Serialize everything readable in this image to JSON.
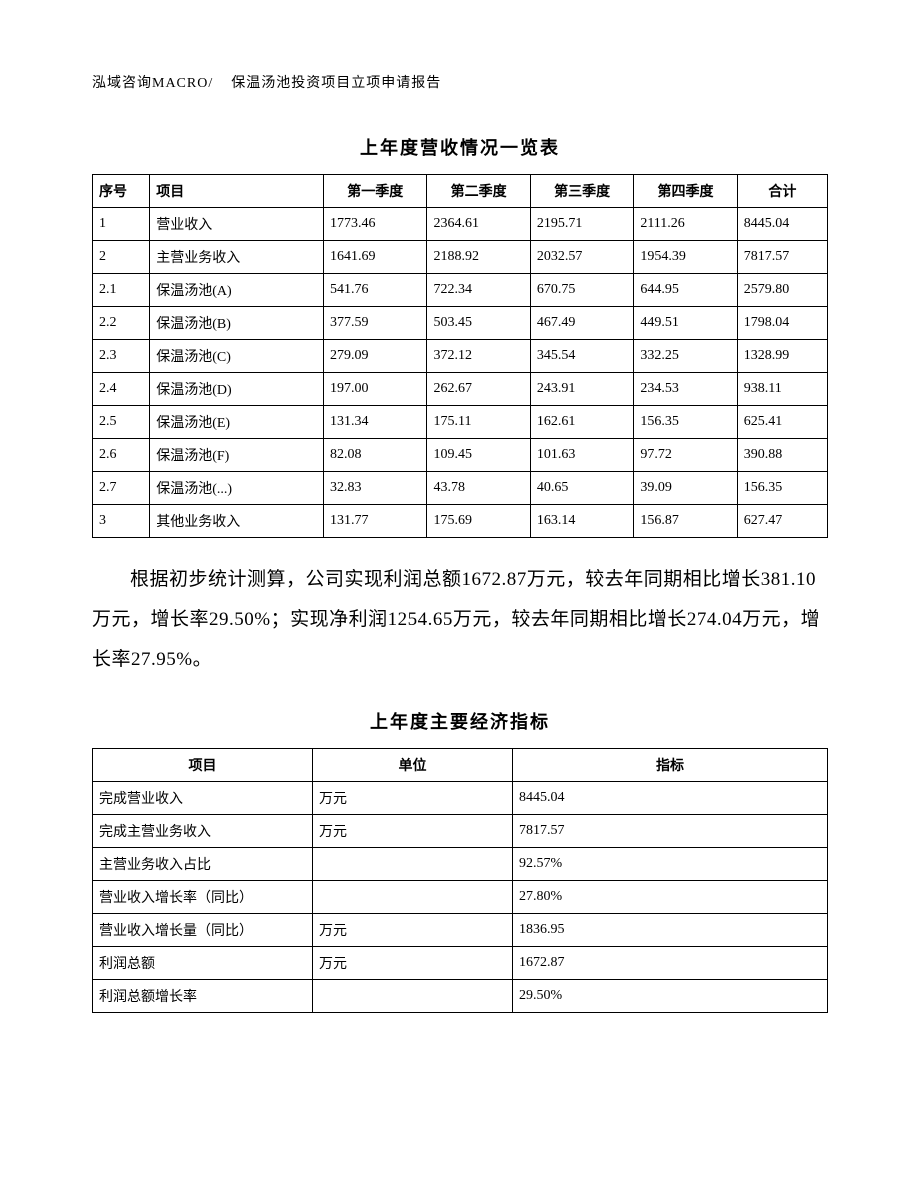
{
  "header": {
    "left": "泓域咨询MACRO/",
    "right": "保温汤池投资项目立项申请报告"
  },
  "table1": {
    "title": "上年度营收情况一览表",
    "columns": [
      "序号",
      "项目",
      "第一季度",
      "第二季度",
      "第三季度",
      "第四季度",
      "合计"
    ],
    "rows": [
      [
        "1",
        "营业收入",
        "1773.46",
        "2364.61",
        "2195.71",
        "2111.26",
        "8445.04"
      ],
      [
        "2",
        "主营业务收入",
        "1641.69",
        "2188.92",
        "2032.57",
        "1954.39",
        "7817.57"
      ],
      [
        "2.1",
        "保温汤池(A)",
        "541.76",
        "722.34",
        "670.75",
        "644.95",
        "2579.80"
      ],
      [
        "2.2",
        "保温汤池(B)",
        "377.59",
        "503.45",
        "467.49",
        "449.51",
        "1798.04"
      ],
      [
        "2.3",
        "保温汤池(C)",
        "279.09",
        "372.12",
        "345.54",
        "332.25",
        "1328.99"
      ],
      [
        "2.4",
        "保温汤池(D)",
        "197.00",
        "262.67",
        "243.91",
        "234.53",
        "938.11"
      ],
      [
        "2.5",
        "保温汤池(E)",
        "131.34",
        "175.11",
        "162.61",
        "156.35",
        "625.41"
      ],
      [
        "2.6",
        "保温汤池(F)",
        "82.08",
        "109.45",
        "101.63",
        "97.72",
        "390.88"
      ],
      [
        "2.7",
        "保温汤池(...)",
        "32.83",
        "43.78",
        "40.65",
        "39.09",
        "156.35"
      ],
      [
        "3",
        "其他业务收入",
        "131.77",
        "175.69",
        "163.14",
        "156.87",
        "627.47"
      ]
    ]
  },
  "paragraph": "根据初步统计测算，公司实现利润总额1672.87万元，较去年同期相比增长381.10万元，增长率29.50%；实现净利润1254.65万元，较去年同期相比增长274.04万元，增长率27.95%。",
  "table2": {
    "title": "上年度主要经济指标",
    "columns": [
      "项目",
      "单位",
      "指标"
    ],
    "rows": [
      [
        "完成营业收入",
        "万元",
        "8445.04"
      ],
      [
        "完成主营业务收入",
        "万元",
        "7817.57"
      ],
      [
        "主营业务收入占比",
        "",
        "92.57%"
      ],
      [
        "营业收入增长率（同比）",
        "",
        "27.80%"
      ],
      [
        "营业收入增长量（同比）",
        "万元",
        "1836.95"
      ],
      [
        "利润总额",
        "万元",
        "1672.87"
      ],
      [
        "利润总额增长率",
        "",
        "29.50%"
      ]
    ]
  },
  "style": {
    "text_color": "#000000",
    "bg_color": "#ffffff",
    "border_color": "#000000",
    "body_fontsize": 15,
    "title_fontsize": 18,
    "paragraph_fontsize": 19,
    "cell_fontsize": 14
  }
}
